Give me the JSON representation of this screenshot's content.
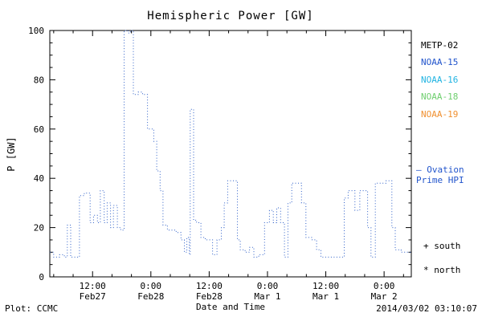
{
  "title": "Hemispheric Power [GW]",
  "ylabel": "P [GW]",
  "footer": {
    "left": "Plot: CCMC",
    "center": "Date and Time",
    "right": "2014/03/02 03:10:07"
  },
  "legend": {
    "satellites": [
      {
        "label": "METP-02",
        "color": "#000000"
      },
      {
        "label": "NOAA-15",
        "color": "#2255cc"
      },
      {
        "label": "NOAA-16",
        "color": "#22b4e2"
      },
      {
        "label": "NOAA-18",
        "color": "#6fcf6f"
      },
      {
        "label": "NOAA-19",
        "color": "#f09030"
      }
    ],
    "ovation_line1": "– Ovation",
    "ovation_line2": "Prime HPI",
    "ovation_color": "#2255cc",
    "south_label": "+ south",
    "north_label": "* north"
  },
  "chart_data": {
    "type": "line",
    "line_style": "dotted-step",
    "color": "#2e5fc8",
    "title": "Hemispheric Power [GW]",
    "xlabel": "Date and Time",
    "ylabel": "P [GW]",
    "ylim": [
      0,
      100
    ],
    "yticks": [
      0,
      20,
      40,
      60,
      80,
      100
    ],
    "xlim_hours_from_feb27": [
      3.2,
      77.6
    ],
    "xticks": [
      {
        "hour": 12,
        "time": "12:00",
        "date": "Feb27"
      },
      {
        "hour": 24,
        "time": "0:00",
        "date": "Feb28"
      },
      {
        "hour": 36,
        "time": "12:00",
        "date": "Feb28"
      },
      {
        "hour": 48,
        "time": "0:00",
        "date": "Mar 1"
      },
      {
        "hour": 60,
        "time": "12:00",
        "date": "Mar 1"
      },
      {
        "hour": 72,
        "time": "0:00",
        "date": "Mar 2"
      }
    ],
    "series": [
      {
        "name": "Ovation Prime HPI",
        "units": "GW",
        "points_hour_value": [
          [
            3.2,
            10
          ],
          [
            4.0,
            8
          ],
          [
            5.2,
            9
          ],
          [
            6.2,
            8
          ],
          [
            6.8,
            21
          ],
          [
            7.5,
            8
          ],
          [
            9.3,
            33
          ],
          [
            10.3,
            34
          ],
          [
            11.5,
            22
          ],
          [
            12.2,
            25
          ],
          [
            13.0,
            22
          ],
          [
            13.6,
            35
          ],
          [
            14.4,
            22
          ],
          [
            15.0,
            30
          ],
          [
            15.7,
            20
          ],
          [
            16.3,
            29
          ],
          [
            17.1,
            20
          ],
          [
            17.8,
            19
          ],
          [
            18.5,
            100
          ],
          [
            19.3,
            99
          ],
          [
            19.8,
            100
          ],
          [
            20.4,
            74
          ],
          [
            21.4,
            75
          ],
          [
            22.3,
            74
          ],
          [
            23.3,
            60
          ],
          [
            24.6,
            55
          ],
          [
            25.2,
            43
          ],
          [
            25.9,
            35
          ],
          [
            26.5,
            21
          ],
          [
            27.4,
            19
          ],
          [
            29.2,
            18
          ],
          [
            30.2,
            15
          ],
          [
            30.9,
            10
          ],
          [
            31.4,
            16
          ],
          [
            31.9,
            9
          ],
          [
            32.1,
            68
          ],
          [
            32.8,
            23
          ],
          [
            33.4,
            22
          ],
          [
            34.3,
            16
          ],
          [
            35.2,
            15
          ],
          [
            36.7,
            9
          ],
          [
            37.6,
            15
          ],
          [
            38.5,
            20
          ],
          [
            39.1,
            30
          ],
          [
            39.8,
            39
          ],
          [
            41.8,
            15
          ],
          [
            42.4,
            11
          ],
          [
            43.4,
            10
          ],
          [
            44.3,
            12
          ],
          [
            45.2,
            8
          ],
          [
            46.2,
            9
          ],
          [
            47.4,
            22
          ],
          [
            48.4,
            27
          ],
          [
            49.2,
            22
          ],
          [
            49.9,
            28
          ],
          [
            50.7,
            22
          ],
          [
            51.5,
            8
          ],
          [
            52.2,
            30
          ],
          [
            53.0,
            38
          ],
          [
            55.0,
            30
          ],
          [
            55.9,
            16
          ],
          [
            57.2,
            15
          ],
          [
            58.1,
            11
          ],
          [
            59.0,
            8
          ],
          [
            63.2,
            8
          ],
          [
            63.8,
            32
          ],
          [
            64.6,
            35
          ],
          [
            66.0,
            27
          ],
          [
            67.0,
            35
          ],
          [
            68.6,
            20
          ],
          [
            69.3,
            8
          ],
          [
            70.2,
            38
          ],
          [
            72.4,
            39
          ],
          [
            73.6,
            20
          ],
          [
            74.3,
            11
          ],
          [
            75.5,
            10
          ],
          [
            77.6,
            10
          ]
        ]
      }
    ]
  }
}
